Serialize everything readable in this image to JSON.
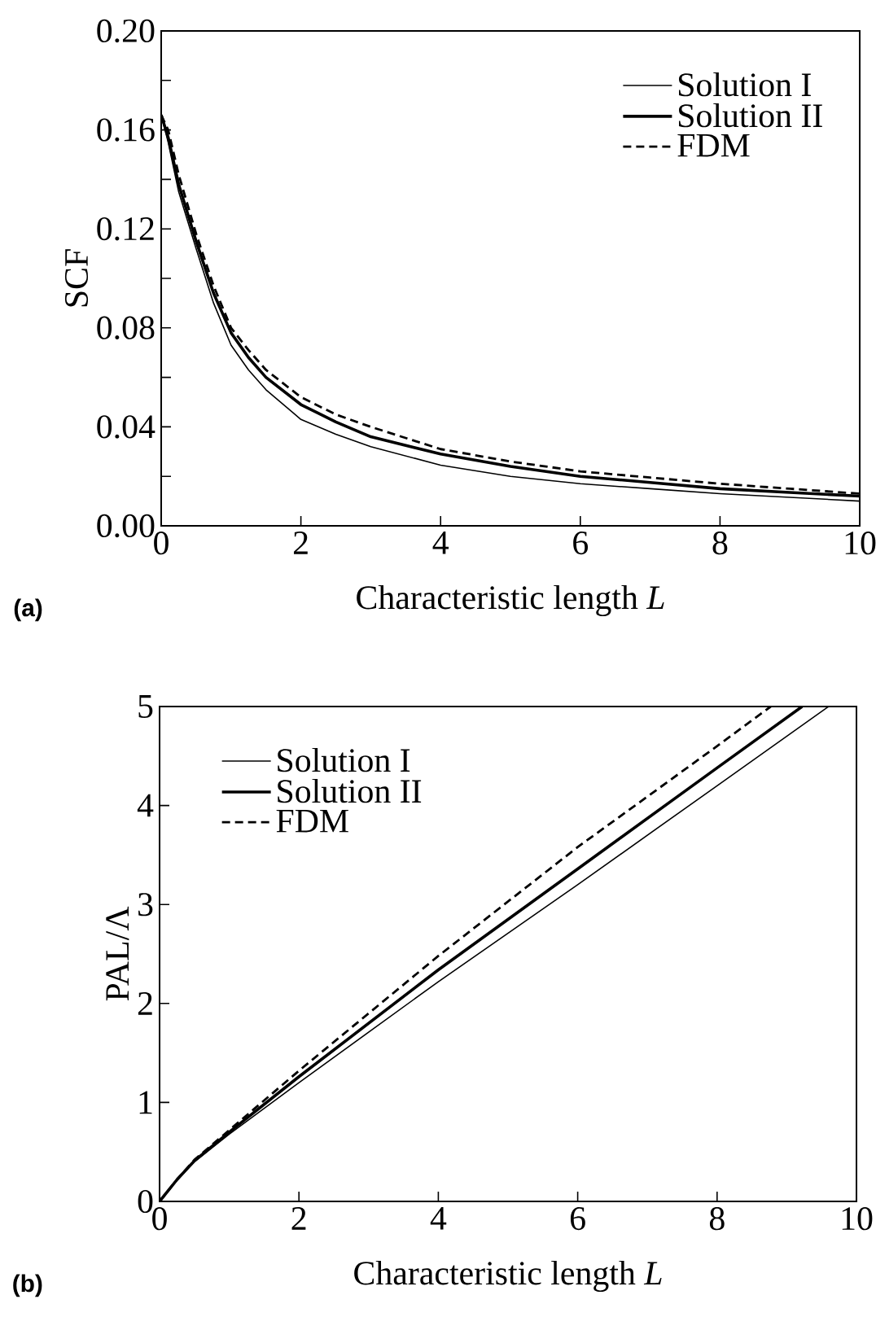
{
  "chart_data": [
    {
      "type": "line",
      "xlabel": "Characteristic length  *L*",
      "ylabel": "SCF",
      "annotations": [
        "(a)"
      ],
      "xlim": [
        0,
        10
      ],
      "ylim": [
        0,
        0.2
      ],
      "xticks": [
        0,
        2,
        4,
        6,
        8,
        10
      ],
      "yticks": [
        {
          "value": 0,
          "label": "0.00"
        },
        {
          "value": 0.02,
          "label": null
        },
        {
          "value": 0.04,
          "label": "0.04"
        },
        {
          "value": 0.06,
          "label": null
        },
        {
          "value": 0.08,
          "label": "0.08"
        },
        {
          "value": 0.1,
          "label": null
        },
        {
          "value": 0.12,
          "label": "0.12"
        },
        {
          "value": 0.14,
          "label": null
        },
        {
          "value": 0.16,
          "label": "0.16"
        },
        {
          "value": 0.18,
          "label": null
        },
        {
          "value": 0.2,
          "label": "0.20"
        }
      ],
      "legend": "top right",
      "marker": "none",
      "series": [
        {
          "name": "Solution I",
          "color": "#000000",
          "line_style": "solid",
          "x": [
            0,
            0.1,
            0.25,
            0.5,
            0.75,
            1,
            1.25,
            1.5,
            2,
            2.5,
            3,
            4,
            5,
            6,
            7,
            8,
            9,
            10
          ],
          "values": [
            0.166,
            0.155,
            0.135,
            0.112,
            0.09,
            0.073,
            0.063,
            0.055,
            0.043,
            0.037,
            0.032,
            0.0245,
            0.02,
            0.017,
            0.015,
            0.013,
            0.0115,
            0.01
          ]
        },
        {
          "name": "Solution II",
          "color": "#000000",
          "line_style": "solid",
          "x": [
            0,
            0.1,
            0.25,
            0.5,
            0.75,
            1,
            1.25,
            1.5,
            2,
            2.5,
            3,
            4,
            5,
            6,
            7,
            8,
            9,
            10
          ],
          "values": [
            0.166,
            0.157,
            0.138,
            0.115,
            0.094,
            0.078,
            0.068,
            0.06,
            0.049,
            0.042,
            0.036,
            0.029,
            0.024,
            0.02,
            0.0175,
            0.015,
            0.0135,
            0.012
          ]
        },
        {
          "name": "FDM",
          "color": "#000000",
          "line_style": "dashed",
          "x": [
            0,
            0.1,
            0.25,
            0.5,
            0.75,
            1,
            1.25,
            1.5,
            2,
            2.5,
            3,
            4,
            5,
            6,
            7,
            8,
            9,
            10
          ],
          "values": [
            0.166,
            0.16,
            0.142,
            0.118,
            0.097,
            0.08,
            0.071,
            0.063,
            0.052,
            0.045,
            0.04,
            0.031,
            0.026,
            0.022,
            0.0195,
            0.017,
            0.015,
            0.013
          ]
        }
      ]
    },
    {
      "type": "line",
      "xlabel": "Characteristic length  *L*",
      "ylabel": "PAL/Λ",
      "annotations": [
        "(b)"
      ],
      "xlim": [
        0,
        10
      ],
      "ylim": [
        0,
        5
      ],
      "xticks": [
        0,
        2,
        4,
        6,
        8,
        10
      ],
      "yticks": [
        0,
        1,
        2,
        3,
        4,
        5
      ],
      "legend": "top left",
      "marker": "none",
      "series": [
        {
          "name": "Solution I",
          "color": "#000000",
          "line_style": "solid",
          "x": [
            0,
            0.25,
            0.5,
            1,
            2,
            4,
            6,
            8,
            9.6
          ],
          "values": [
            0,
            0.22,
            0.4,
            0.68,
            1.2,
            2.22,
            3.2,
            4.2,
            5
          ]
        },
        {
          "name": "Solution II",
          "color": "#000000",
          "line_style": "solid",
          "x": [
            0,
            0.25,
            0.5,
            1,
            2,
            4,
            6,
            8,
            9.22
          ],
          "values": [
            0,
            0.22,
            0.41,
            0.7,
            1.26,
            2.34,
            3.36,
            4.38,
            5
          ]
        },
        {
          "name": "FDM",
          "color": "#000000",
          "line_style": "dashed",
          "x": [
            0,
            0.25,
            0.5,
            1,
            2,
            4,
            6,
            8,
            8.77
          ],
          "values": [
            0,
            0.22,
            0.42,
            0.72,
            1.32,
            2.48,
            3.58,
            4.6,
            5
          ]
        }
      ]
    }
  ]
}
